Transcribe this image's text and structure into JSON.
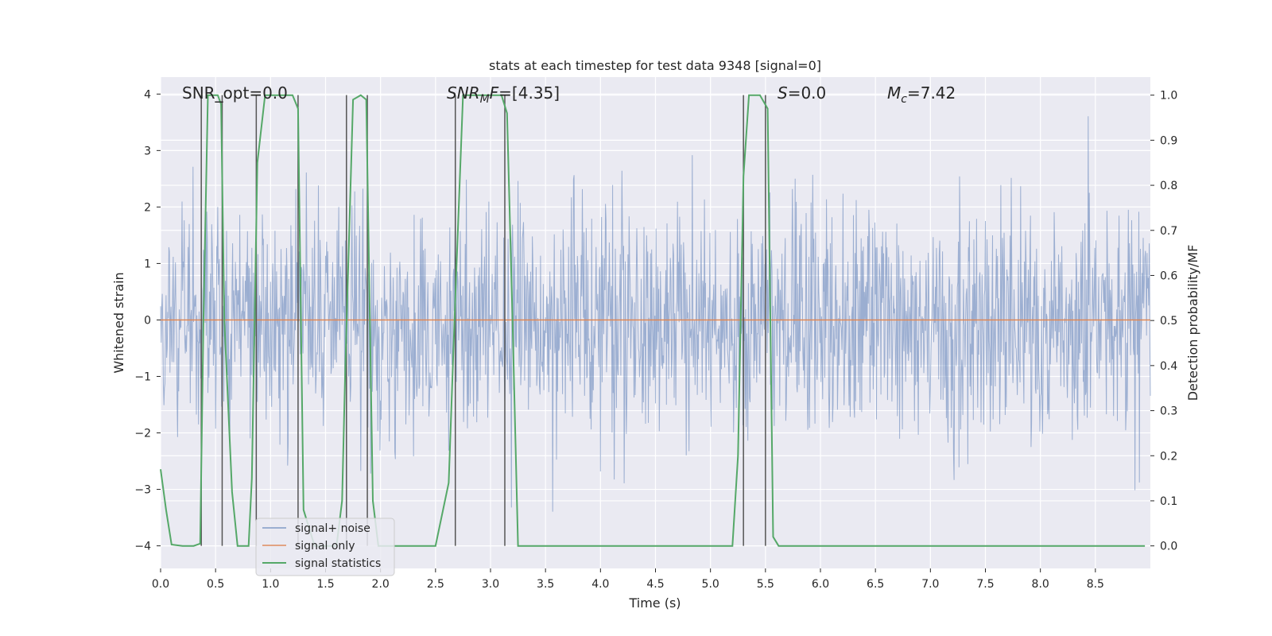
{
  "chart_data": {
    "type": "line",
    "title": "stats at each timestep for test data 9348 [signal=0]",
    "xlabel": "Time (s)",
    "ylabel_left": "Whitened strain",
    "ylabel_right": "Detection probability/MF",
    "xlim": [
      0,
      9.0
    ],
    "ylim_left": [
      -4.4,
      4.3
    ],
    "ylim_right": [
      -0.05,
      1.04
    ],
    "x_ticks": [
      0.0,
      0.5,
      1.0,
      1.5,
      2.0,
      2.5,
      3.0,
      3.5,
      4.0,
      4.5,
      5.0,
      5.5,
      6.0,
      6.5,
      7.0,
      7.5,
      8.0,
      8.5
    ],
    "x_tick_labels": [
      "0.0",
      "0.5",
      "1.0",
      "1.5",
      "2.0",
      "2.5",
      "3.0",
      "3.5",
      "4.0",
      "4.5",
      "5.0",
      "5.5",
      "6.0",
      "6.5",
      "7.0",
      "7.5",
      "8.0",
      "8.5"
    ],
    "y_ticks_left": [
      4,
      3,
      2,
      1,
      0,
      -1,
      -2,
      -3,
      -4
    ],
    "y_tick_labels_left": [
      "4",
      "3",
      "2",
      "1",
      "0",
      "−1",
      "−2",
      "−3",
      "−4"
    ],
    "y_ticks_right": [
      1.0,
      0.9,
      0.8,
      0.7,
      0.6,
      0.5,
      0.4,
      0.3,
      0.2,
      0.1,
      0.0
    ],
    "y_tick_labels_right": [
      "1.0",
      "0.9",
      "0.8",
      "0.7",
      "0.6",
      "0.5",
      "0.4",
      "0.3",
      "0.2",
      "0.1",
      "0.0"
    ],
    "annotations": {
      "snr_opt": "SNR_opt=0.0",
      "snr_mf_main": "SNR",
      "snr_mf_sub": "M",
      "snr_mf_rest": "F",
      "snr_mf_value": "=[4.35]",
      "s_main": "S",
      "s_value": "=0.0",
      "mc_main": "M",
      "mc_sub": "c",
      "mc_value": "=7.42"
    },
    "legend": {
      "placement": "lower-left",
      "entries": [
        {
          "label": "signal+ noise",
          "color": "#4c72b0"
        },
        {
          "label": "signal only",
          "color": "#dd8452"
        },
        {
          "label": "signal statistics",
          "color": "#55a868"
        }
      ]
    },
    "series": [
      {
        "name": "signal+ noise",
        "axis": "left",
        "description": "dense whitened noise trace, roughly Gaussian with unit variance, spanning 0 to 9 s",
        "dt": 0.005,
        "std": 1.0
      },
      {
        "name": "signal only",
        "axis": "left",
        "constant": 0.0
      },
      {
        "name": "signal statistics",
        "axis": "right",
        "x": [
          0.0,
          0.05,
          0.1,
          0.2,
          0.3,
          0.36,
          0.39,
          0.43,
          0.52,
          0.55,
          0.58,
          0.65,
          0.7,
          0.8,
          0.83,
          0.88,
          0.95,
          1.0,
          1.1,
          1.2,
          1.25,
          1.3,
          1.4,
          1.5,
          1.6,
          1.65,
          1.68,
          1.75,
          1.82,
          1.87,
          1.93,
          1.98,
          2.05,
          2.3,
          2.5,
          2.62,
          2.68,
          2.75,
          2.9,
          3.1,
          3.15,
          3.2,
          3.25,
          3.5,
          4.0,
          4.5,
          5.0,
          5.2,
          5.25,
          5.3,
          5.35,
          5.45,
          5.52,
          5.57,
          5.62,
          5.7,
          6.0,
          7.0,
          8.0,
          8.95
        ],
        "y": [
          0.17,
          0.08,
          0.003,
          0.0,
          0.0,
          0.005,
          0.5,
          1.0,
          1.0,
          0.98,
          0.5,
          0.12,
          0.0,
          0.0,
          0.15,
          0.85,
          1.0,
          1.0,
          1.0,
          1.0,
          0.97,
          0.08,
          0.0,
          0.0,
          0.0,
          0.1,
          0.4,
          0.99,
          1.0,
          0.99,
          0.1,
          0.0,
          0.0,
          0.0,
          0.0,
          0.14,
          0.55,
          1.0,
          1.0,
          1.0,
          0.96,
          0.5,
          0.0,
          0.0,
          0.0,
          0.0,
          0.0,
          0.0,
          0.2,
          0.82,
          1.0,
          1.0,
          0.97,
          0.02,
          0.0,
          0.0,
          0.0,
          0.0,
          0.0,
          0.0
        ]
      }
    ],
    "vertical_markers_x": [
      0.37,
      0.56,
      0.87,
      1.25,
      1.69,
      1.88,
      2.68,
      3.13,
      5.3,
      5.5
    ],
    "grid": true,
    "facecolor": "#eaeaf2"
  }
}
